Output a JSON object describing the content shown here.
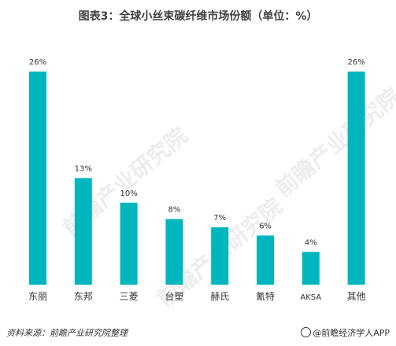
{
  "title": "图表3：全球小丝束碳纤维市场份额（单位：%）",
  "source": "资料来源：前瞻产业研究院整理",
  "credit": "@前瞻经济学人APP",
  "watermark": "前瞻产业研究院",
  "colors": {
    "bar": "#00b6be",
    "title": "#404040",
    "text": "#333333"
  },
  "chart_data": {
    "type": "bar",
    "title": "图表3：全球小丝束碳纤维市场份额（单位：%）",
    "categories": [
      "东丽",
      "东邦",
      "三菱",
      "台塑",
      "赫氏",
      "氰特",
      "AKSA",
      "其他"
    ],
    "values": [
      26,
      13,
      10,
      8,
      7,
      6,
      4,
      26
    ],
    "labels": [
      "26%",
      "13%",
      "10%",
      "8%",
      "7%",
      "6%",
      "4%",
      "26%"
    ],
    "xlabel": "",
    "ylabel": "",
    "ylim": [
      0,
      26
    ],
    "grid": false,
    "legend": "none"
  }
}
